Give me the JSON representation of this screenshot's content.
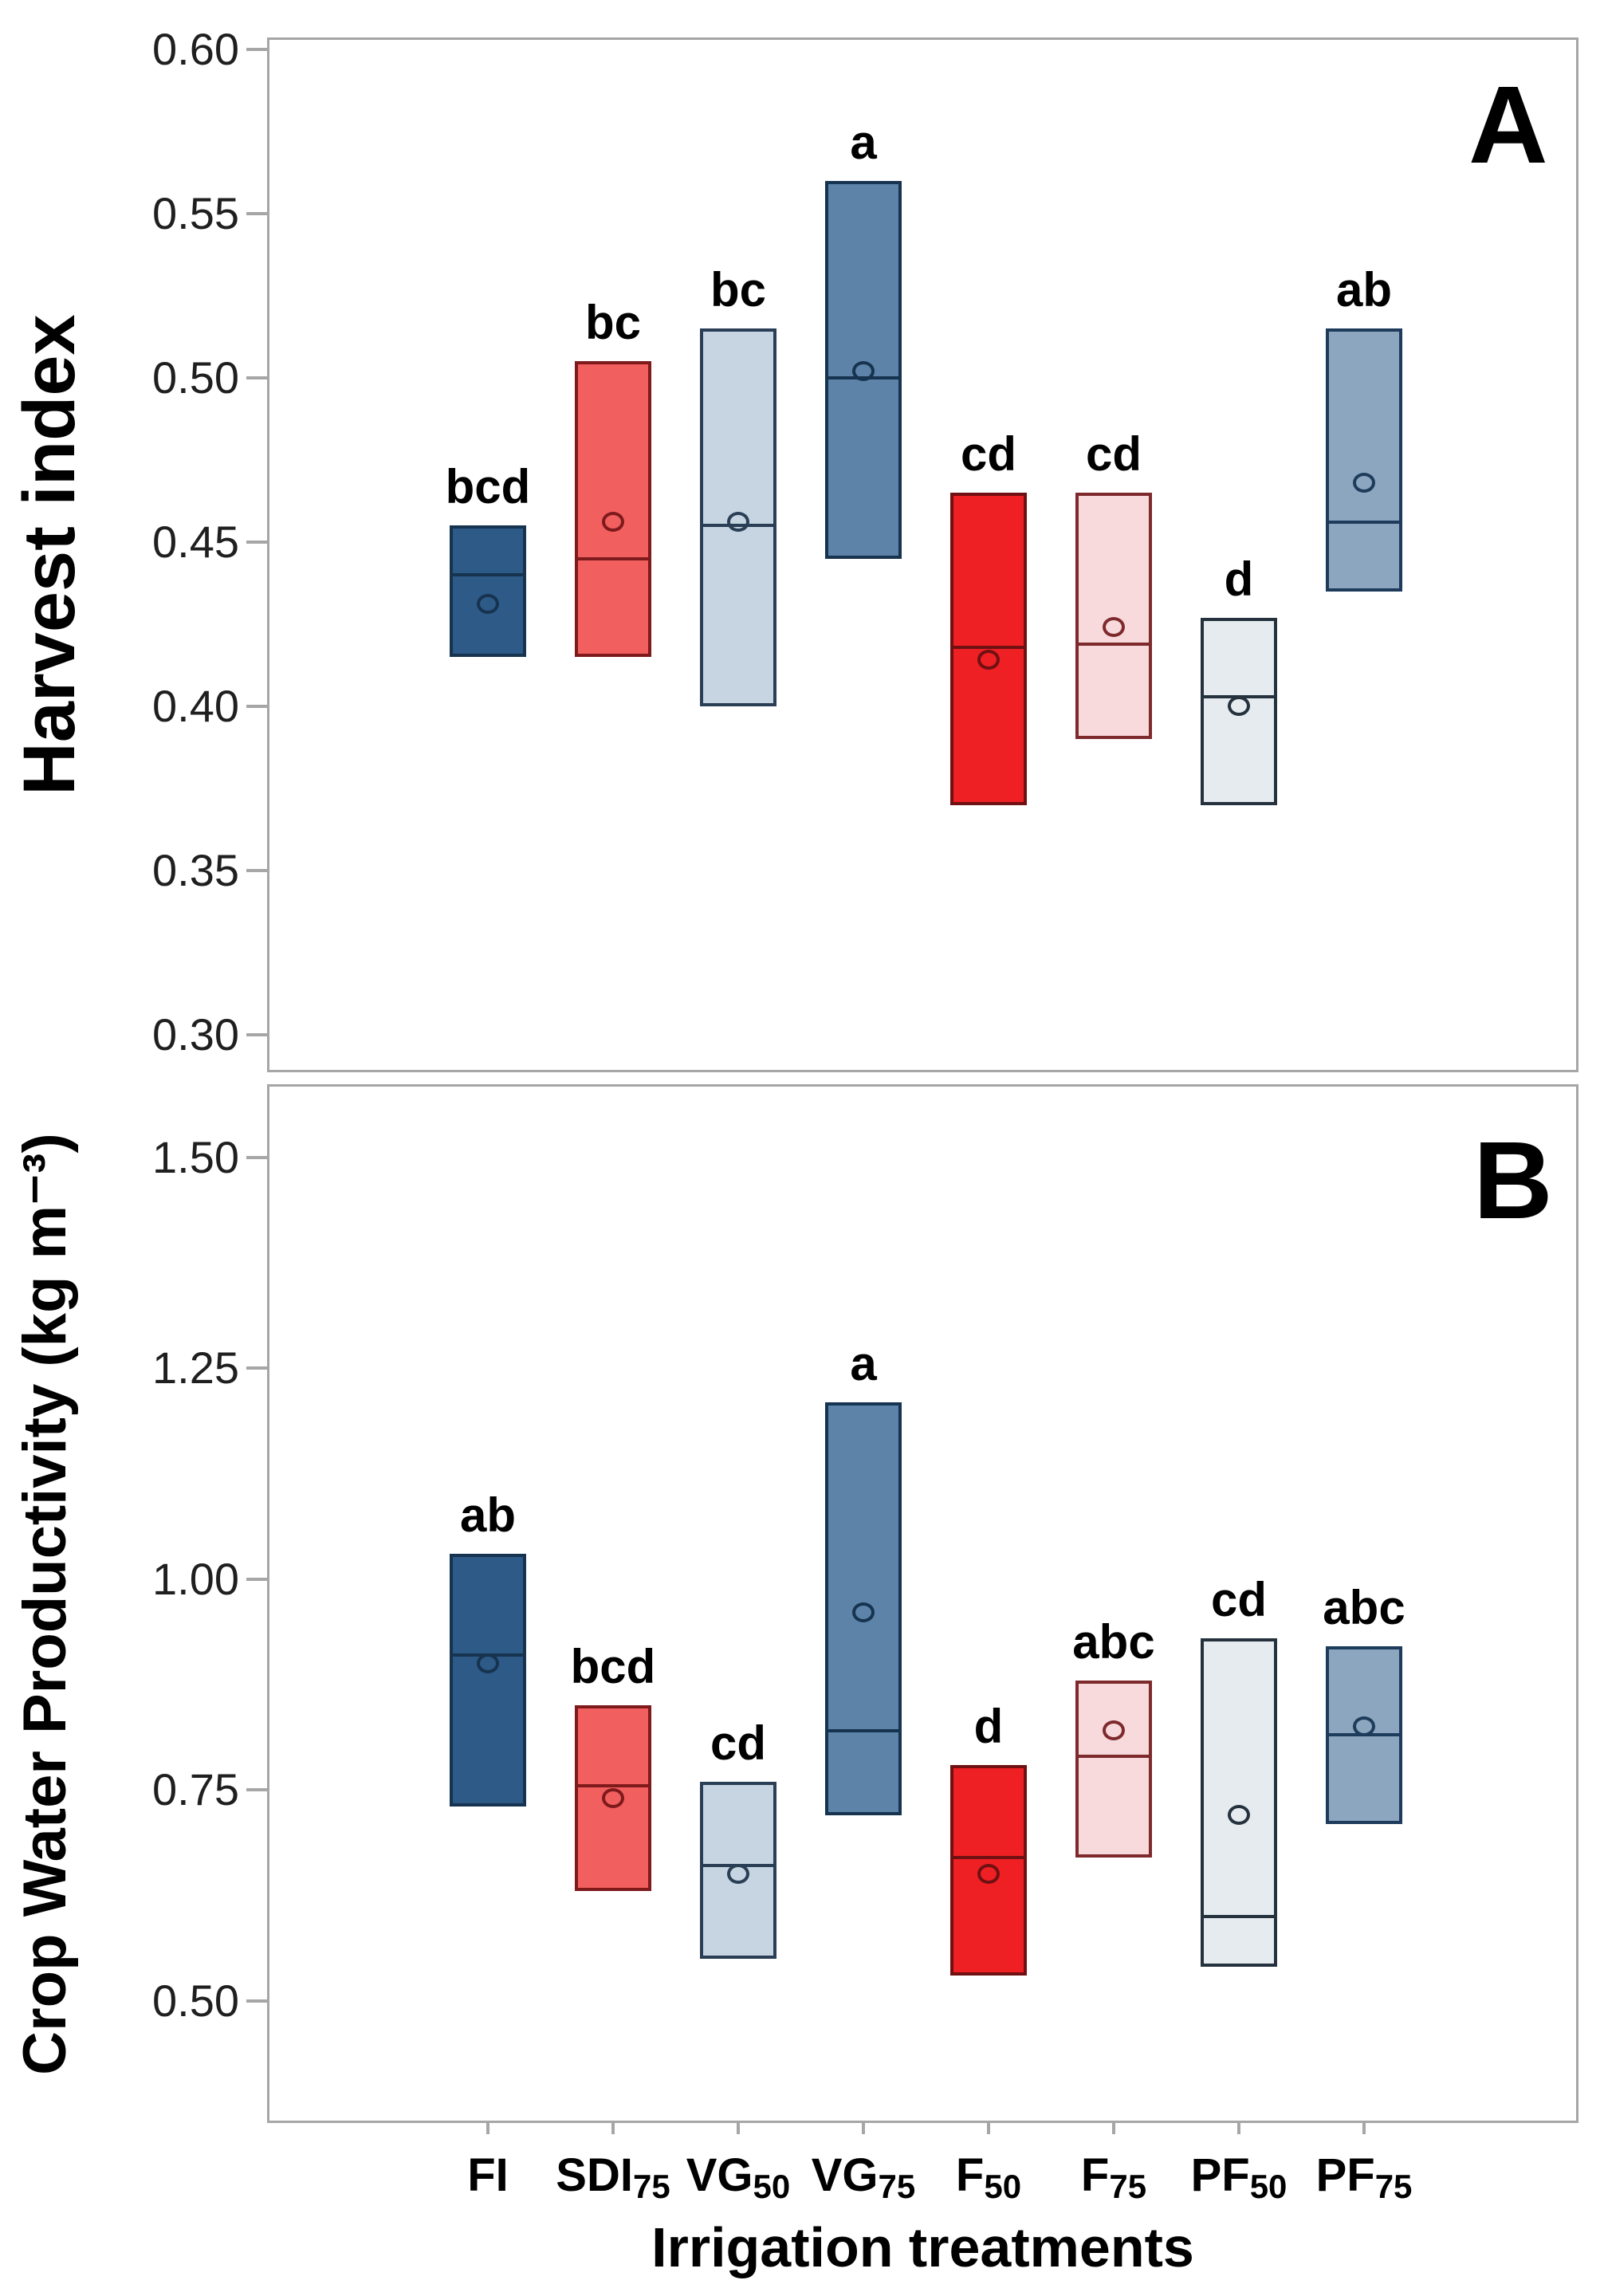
{
  "figure": {
    "background": "#FFFFFF",
    "frame_color": "#A6A6A6",
    "x_axis_title": "Irrigation treatments"
  },
  "categories": [
    {
      "main": "FI",
      "sub": ""
    },
    {
      "main": "SDI",
      "sub": "75"
    },
    {
      "main": "VG",
      "sub": "50"
    },
    {
      "main": "VG",
      "sub": "75"
    },
    {
      "main": "F",
      "sub": "50"
    },
    {
      "main": "F",
      "sub": "75"
    },
    {
      "main": "PF",
      "sub": "50"
    },
    {
      "main": "PF",
      "sub": "75"
    }
  ],
  "treatment_colors": [
    {
      "treatment": "FI",
      "fill": "#2E5A88",
      "stroke": "#16334F"
    },
    {
      "treatment": "SDI75",
      "fill": "#F25F5F",
      "stroke": "#7E1A1C"
    },
    {
      "treatment": "VG50",
      "fill": "#C6D5E1",
      "stroke": "#2A3E55"
    },
    {
      "treatment": "VG75",
      "fill": "#5D83A9",
      "stroke": "#16334F"
    },
    {
      "treatment": "F50",
      "fill": "#EE2024",
      "stroke": "#701012"
    },
    {
      "treatment": "F75",
      "fill": "#F8D9DC",
      "stroke": "#7E2A2D"
    },
    {
      "treatment": "PF50",
      "fill": "#E5EBEF",
      "stroke": "#25323E"
    },
    {
      "treatment": "PF75",
      "fill": "#8DA6BF",
      "stroke": "#1D3B5B"
    }
  ],
  "chart_data": [
    {
      "type": "box",
      "panel_label": "A",
      "title": "",
      "xlabel": "",
      "ylabel": "Harvest index",
      "ylim": [
        0.2886,
        0.6036
      ],
      "y_ticks": [
        0.6,
        0.55,
        0.5,
        0.45,
        0.4,
        0.35,
        0.3
      ],
      "y_tick_labels": [
        "0.60",
        "0.55",
        "0.50",
        "0.45",
        "0.40",
        "0.35",
        "0.30"
      ],
      "grid": false,
      "legend": "none",
      "categories": [
        "FI",
        "SDI75",
        "VG50",
        "VG75",
        "F50",
        "F75",
        "PF50",
        "PF75"
      ],
      "boxes": [
        {
          "treatment": "FI",
          "low": 0.415,
          "high": 0.455,
          "median": 0.44,
          "mean": 0.431,
          "letter": "bcd"
        },
        {
          "treatment": "SDI75",
          "low": 0.415,
          "high": 0.505,
          "median": 0.445,
          "mean": 0.456,
          "letter": "bc"
        },
        {
          "treatment": "VG50",
          "low": 0.4,
          "high": 0.515,
          "median": 0.455,
          "mean": 0.456,
          "letter": "bc"
        },
        {
          "treatment": "VG75",
          "low": 0.445,
          "high": 0.56,
          "median": 0.5,
          "mean": 0.502,
          "letter": "a"
        },
        {
          "treatment": "F50",
          "low": 0.37,
          "high": 0.465,
          "median": 0.418,
          "mean": 0.414,
          "letter": "cd"
        },
        {
          "treatment": "F75",
          "low": 0.39,
          "high": 0.465,
          "median": 0.419,
          "mean": 0.424,
          "letter": "cd"
        },
        {
          "treatment": "PF50",
          "low": 0.37,
          "high": 0.427,
          "median": 0.403,
          "mean": 0.4,
          "letter": "d"
        },
        {
          "treatment": "PF75",
          "low": 0.435,
          "high": 0.515,
          "median": 0.456,
          "mean": 0.468,
          "letter": "ab"
        }
      ]
    },
    {
      "type": "box",
      "panel_label": "B",
      "title": "",
      "xlabel": "Irrigation treatments",
      "ylabel": "Crop Water Productivity (kg m⁻³)",
      "ylim": [
        0.355,
        1.587
      ],
      "y_ticks": [
        1.5,
        1.25,
        1.0,
        0.75,
        0.5
      ],
      "y_tick_labels": [
        "1.50",
        "1.25",
        "1.00",
        "0.75",
        "0.50"
      ],
      "grid": false,
      "legend": "none",
      "categories": [
        "FI",
        "SDI75",
        "VG50",
        "VG75",
        "F50",
        "F75",
        "PF50",
        "PF75"
      ],
      "boxes": [
        {
          "treatment": "FI",
          "low": 0.73,
          "high": 1.03,
          "median": 0.91,
          "mean": 0.9,
          "letter": "ab"
        },
        {
          "treatment": "SDI75",
          "low": 0.63,
          "high": 0.85,
          "median": 0.755,
          "mean": 0.74,
          "letter": "bcd"
        },
        {
          "treatment": "VG50",
          "low": 0.55,
          "high": 0.76,
          "median": 0.66,
          "mean": 0.65,
          "letter": "cd"
        },
        {
          "treatment": "VG75",
          "low": 0.72,
          "high": 1.21,
          "median": 0.82,
          "mean": 0.96,
          "letter": "a"
        },
        {
          "treatment": "F50",
          "low": 0.53,
          "high": 0.78,
          "median": 0.67,
          "mean": 0.65,
          "letter": "d"
        },
        {
          "treatment": "F75",
          "low": 0.67,
          "high": 0.88,
          "median": 0.79,
          "mean": 0.82,
          "letter": "abc"
        },
        {
          "treatment": "PF50",
          "low": 0.54,
          "high": 0.93,
          "median": 0.6,
          "mean": 0.72,
          "letter": "cd"
        },
        {
          "treatment": "PF75",
          "low": 0.71,
          "high": 0.92,
          "median": 0.815,
          "mean": 0.825,
          "letter": "abc"
        }
      ]
    }
  ]
}
